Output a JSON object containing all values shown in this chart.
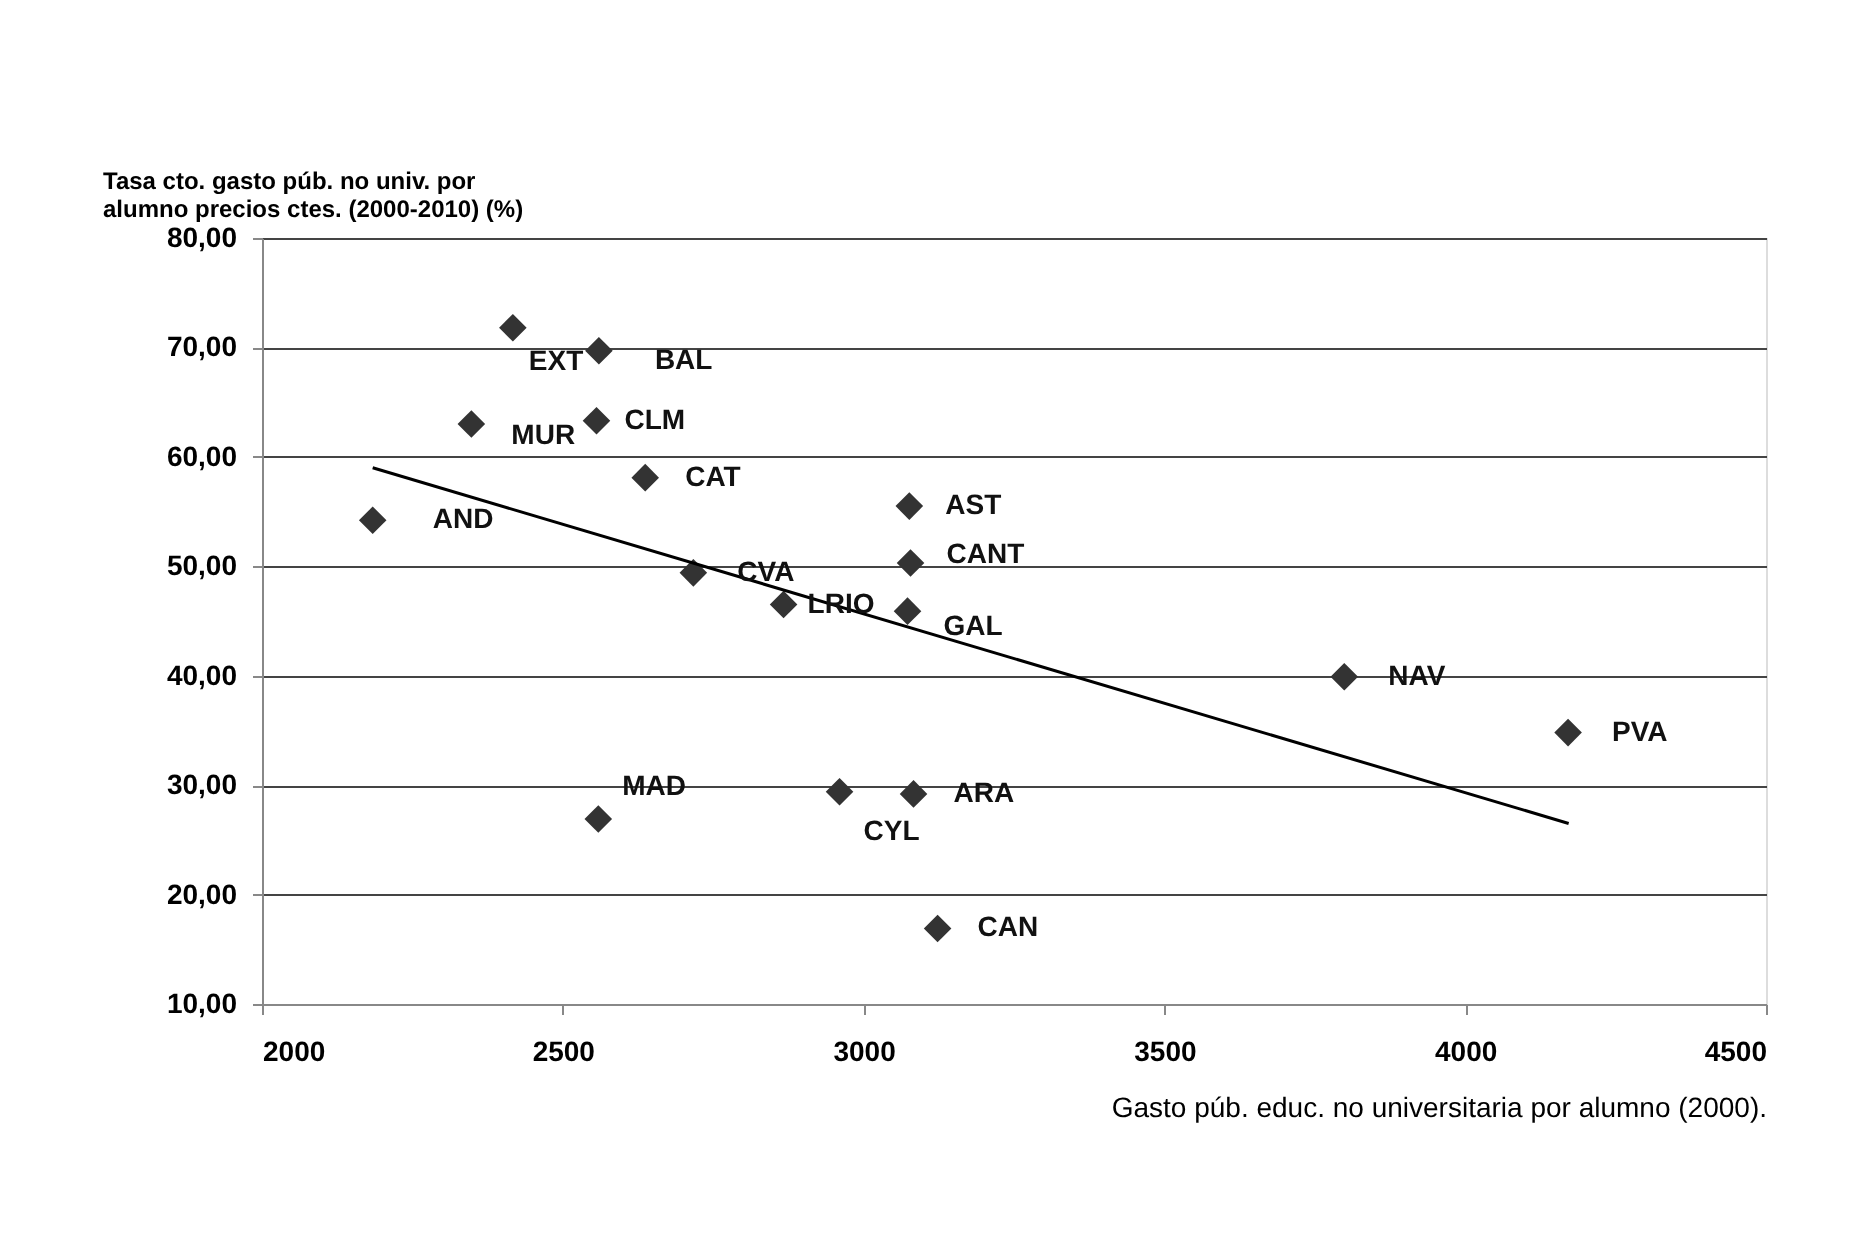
{
  "chart_data": {
    "type": "scatter",
    "xlabel": "Gasto púb. educ. no universitaria por alumno (2000).",
    "ylabel": "Tasa cto. gasto púb. no univ. por\nalumno precios ctes. (2000-2010) (%)",
    "xlim": [
      2000,
      4500
    ],
    "xticks": [
      2000,
      2500,
      3000,
      3500,
      4000,
      4500
    ],
    "ylim": [
      10,
      80
    ],
    "yticks": [
      {
        "value": 10,
        "label": "10,00"
      },
      {
        "value": 20,
        "label": "20,00"
      },
      {
        "value": 30,
        "label": "30,00"
      },
      {
        "value": 40,
        "label": "40,00"
      },
      {
        "value": 50,
        "label": "50,00"
      },
      {
        "value": 60,
        "label": "60,00"
      },
      {
        "value": 70,
        "label": "70,00"
      },
      {
        "value": 80,
        "label": "80,00"
      }
    ],
    "grid": "y",
    "marker": "diamond",
    "series": [
      {
        "color": "#333333",
        "x": [
          2417,
          2560,
          2348,
          2556,
          2637,
          2184,
          3076,
          3078,
          2717,
          2867,
          3073,
          2559,
          2960,
          3083,
          3123,
          3799,
          4171
        ],
        "values": [
          71.8,
          69.7,
          63.0,
          63.3,
          58.1,
          54.2,
          55.5,
          50.3,
          49.4,
          46.5,
          45.9,
          26.9,
          29.4,
          29.2,
          16.9,
          39.9,
          34.8
        ]
      },
      {
        "type": "line",
        "color": "#000000",
        "line_style": "solid",
        "marker": "none",
        "x": [
          2184,
          4172
        ],
        "values": [
          59.0,
          26.5
        ]
      }
    ],
    "annotations": [
      {
        "text": "EXT",
        "x": 2417,
        "y": 71.8
      },
      {
        "text": "BAL",
        "x": 2560,
        "y": 69.7
      },
      {
        "text": "MUR",
        "x": 2348,
        "y": 63.0
      },
      {
        "text": "CLM",
        "x": 2556,
        "y": 63.3
      },
      {
        "text": "CAT",
        "x": 2637,
        "y": 58.1
      },
      {
        "text": "AND",
        "x": 2184,
        "y": 54.2
      },
      {
        "text": "AST",
        "x": 3076,
        "y": 55.5
      },
      {
        "text": "CANT",
        "x": 3078,
        "y": 50.3
      },
      {
        "text": "CVA",
        "x": 2717,
        "y": 49.4
      },
      {
        "text": "LRIO",
        "x": 2867,
        "y": 46.5
      },
      {
        "text": "GAL",
        "x": 3073,
        "y": 45.9
      },
      {
        "text": "MAD",
        "x": 2559,
        "y": 26.9
      },
      {
        "text": "CYL",
        "x": 2960,
        "y": 29.4
      },
      {
        "text": "ARA",
        "x": 3083,
        "y": 29.2
      },
      {
        "text": "CAN",
        "x": 3123,
        "y": 16.9
      },
      {
        "text": "NAV",
        "x": 3799,
        "y": 39.9
      },
      {
        "text": "PVA",
        "x": 4171,
        "y": 34.8
      }
    ]
  }
}
